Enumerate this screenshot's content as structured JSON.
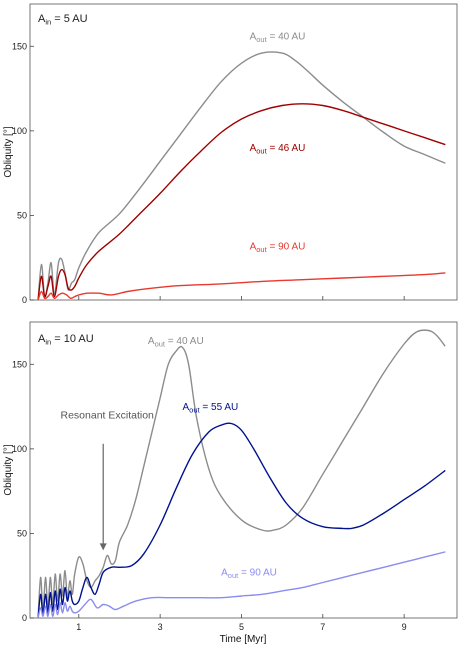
{
  "chart_data": [
    {
      "type": "line",
      "panel_label": {
        "main": "A",
        "sub": "in",
        "rest": " = 5 AU"
      },
      "ylabel": "Obliquity [°]",
      "xlabel": "",
      "xlim": [
        -0.2,
        10.3
      ],
      "ylim": [
        0,
        175
      ],
      "yticks": [
        0,
        50,
        100,
        150
      ],
      "xticks": [
        1,
        3,
        5,
        7,
        9
      ],
      "show_xtick_labels": false,
      "grid": false,
      "series": [
        {
          "name": "A_out = 40 AU",
          "label": {
            "main": "A",
            "sub": "out",
            "rest": " = 40 AU",
            "at": [
              5.2,
              154
            ]
          },
          "color": "#8c8c8c",
          "x": [
            0,
            0.08,
            0.16,
            0.24,
            0.32,
            0.4,
            0.5,
            0.58,
            0.66,
            0.74,
            0.82,
            0.9,
            1.0,
            1.2,
            1.5,
            2.0,
            2.5,
            3.0,
            3.5,
            4.0,
            4.5,
            5.0,
            5.5,
            6.0,
            6.3,
            6.6,
            7.0,
            7.5,
            8.0,
            8.5,
            9.0,
            9.5,
            10.0
          ],
          "y": [
            0,
            21,
            2,
            10,
            22,
            3,
            22,
            24,
            16,
            6,
            10,
            12,
            19,
            29,
            40,
            51,
            66,
            82,
            98,
            114,
            129,
            140,
            146,
            146,
            142,
            136,
            127,
            117,
            108,
            99,
            91,
            86,
            81
          ]
        },
        {
          "name": "A_out = 46 AU",
          "label": {
            "main": "A",
            "sub": "out",
            "rest": " = 46 AU",
            "at": [
              5.2,
              88
            ]
          },
          "color": "#a00000",
          "x": [
            0,
            0.08,
            0.16,
            0.24,
            0.32,
            0.4,
            0.5,
            0.58,
            0.66,
            0.74,
            0.82,
            0.9,
            1.0,
            1.2,
            1.5,
            2.0,
            2.5,
            3.0,
            3.5,
            4.0,
            4.5,
            5.0,
            5.5,
            6.0,
            6.5,
            7.0,
            7.5,
            8.0,
            8.5,
            9.0,
            9.5,
            10.0
          ],
          "y": [
            0,
            14,
            2,
            8,
            14,
            2,
            14,
            18,
            15,
            7,
            6,
            8,
            13,
            21,
            29,
            39,
            51,
            63,
            76,
            88,
            99,
            107,
            112,
            115,
            116,
            115,
            112,
            108,
            104,
            100,
            96,
            92
          ]
        },
        {
          "name": "A_out = 90 AU",
          "label": {
            "main": "A",
            "sub": "out",
            "rest": " = 90 AU",
            "at": [
              5.2,
              30
            ]
          },
          "color": "#e8392e",
          "x": [
            0,
            0.08,
            0.16,
            0.24,
            0.32,
            0.4,
            0.5,
            0.6,
            0.7,
            0.8,
            0.9,
            1.0,
            1.2,
            1.5,
            1.8,
            2.2,
            2.8,
            3.5,
            4.5,
            5.5,
            6.5,
            7.5,
            8.5,
            9.5,
            10.0
          ],
          "y": [
            0,
            5,
            1,
            2,
            4,
            1,
            3,
            4,
            3,
            1,
            2,
            3,
            4,
            4,
            3,
            5,
            7,
            8.5,
            9.5,
            11,
            12,
            13,
            14,
            15,
            16
          ]
        }
      ]
    },
    {
      "type": "line",
      "panel_label": {
        "main": "A",
        "sub": "in",
        "rest": " = 10 AU"
      },
      "ylabel": "Obliquity [°]",
      "xlabel": "Time [Myr]",
      "xlim": [
        -0.2,
        10.3
      ],
      "ylim": [
        0,
        175
      ],
      "yticks": [
        0,
        50,
        100,
        150
      ],
      "xticks": [
        1,
        3,
        5,
        7,
        9
      ],
      "show_xtick_labels": true,
      "grid": false,
      "annotation": {
        "text": "Resonant Excitation",
        "text_at": [
          0.55,
          118
        ],
        "arrow_from": [
          1.6,
          103
        ],
        "arrow_to": [
          1.6,
          40
        ]
      },
      "series": [
        {
          "name": "A_out = 40 AU",
          "label": {
            "main": "A",
            "sub": "out",
            "rest": " = 40 AU",
            "at": [
              2.7,
              162
            ]
          },
          "color": "#8c8c8c",
          "x": [
            0,
            0.06,
            0.12,
            0.18,
            0.24,
            0.3,
            0.36,
            0.42,
            0.48,
            0.54,
            0.6,
            0.66,
            0.72,
            0.78,
            0.84,
            0.9,
            1.0,
            1.1,
            1.2,
            1.3,
            1.4,
            1.5,
            1.6,
            1.7,
            1.8,
            1.9,
            2.0,
            2.2,
            2.4,
            2.6,
            2.8,
            3.0,
            3.2,
            3.4,
            3.55,
            3.7,
            3.9,
            4.2,
            4.5,
            5.0,
            5.5,
            5.8,
            6.1,
            6.5,
            7.0,
            7.5,
            8.0,
            8.5,
            9.0,
            9.3,
            9.6,
            9.8,
            10.0
          ],
          "y": [
            0,
            24,
            4,
            24,
            6,
            24,
            8,
            26,
            10,
            26,
            13,
            28,
            12,
            22,
            14,
            26,
            36,
            32,
            22,
            18,
            22,
            25,
            30,
            37,
            32,
            34,
            45,
            55,
            70,
            90,
            110,
            130,
            150,
            158,
            160,
            150,
            118,
            88,
            72,
            58,
            52,
            52,
            55,
            65,
            85,
            105,
            125,
            145,
            162,
            169,
            170,
            167,
            161
          ]
        },
        {
          "name": "A_out = 55 AU",
          "label": {
            "main": "A",
            "sub": "out",
            "rest": " = 55 AU",
            "at": [
              3.55,
              123
            ]
          },
          "color": "#00118f",
          "x": [
            0,
            0.06,
            0.12,
            0.18,
            0.24,
            0.3,
            0.36,
            0.42,
            0.48,
            0.54,
            0.6,
            0.66,
            0.72,
            0.78,
            0.84,
            0.9,
            1.0,
            1.1,
            1.2,
            1.3,
            1.4,
            1.5,
            1.6,
            1.8,
            2.0,
            2.3,
            2.6,
            3.0,
            3.4,
            3.8,
            4.2,
            4.5,
            4.75,
            5.0,
            5.3,
            5.7,
            6.1,
            6.5,
            7.0,
            7.5,
            7.7,
            8.0,
            8.5,
            9.0,
            9.5,
            10.0
          ],
          "y": [
            0,
            14,
            2,
            14,
            3,
            15,
            4,
            16,
            5,
            17,
            8,
            18,
            10,
            16,
            10,
            8,
            10,
            18,
            24,
            18,
            14,
            20,
            27,
            30,
            30,
            31,
            38,
            55,
            77,
            97,
            110,
            114,
            115,
            111,
            100,
            83,
            68,
            59,
            54,
            53,
            53,
            55,
            62,
            70,
            78,
            87
          ]
        },
        {
          "name": "A_out = 90 AU",
          "label": {
            "main": "A",
            "sub": "out",
            "rest": " = 90 AU",
            "at": [
              4.5,
              25
            ]
          },
          "color": "#8a8cf0",
          "x": [
            0,
            0.06,
            0.12,
            0.18,
            0.24,
            0.3,
            0.36,
            0.42,
            0.48,
            0.54,
            0.6,
            0.66,
            0.72,
            0.78,
            0.84,
            0.9,
            1.0,
            1.15,
            1.3,
            1.45,
            1.6,
            1.75,
            1.9,
            2.1,
            2.4,
            2.8,
            3.2,
            3.6,
            4.0,
            4.5,
            5.0,
            5.5,
            6.0,
            6.5,
            7.0,
            7.5,
            8.0,
            8.5,
            9.0,
            9.5,
            10.0
          ],
          "y": [
            0,
            6,
            1,
            7,
            1,
            8,
            1,
            8,
            2,
            9,
            3,
            9,
            4,
            7,
            4,
            3,
            4,
            8,
            11,
            6,
            8,
            7,
            5,
            7,
            10,
            12,
            12,
            12,
            12,
            12,
            13,
            14,
            16,
            18,
            21,
            24,
            27,
            30,
            33,
            36,
            39
          ]
        }
      ]
    }
  ]
}
